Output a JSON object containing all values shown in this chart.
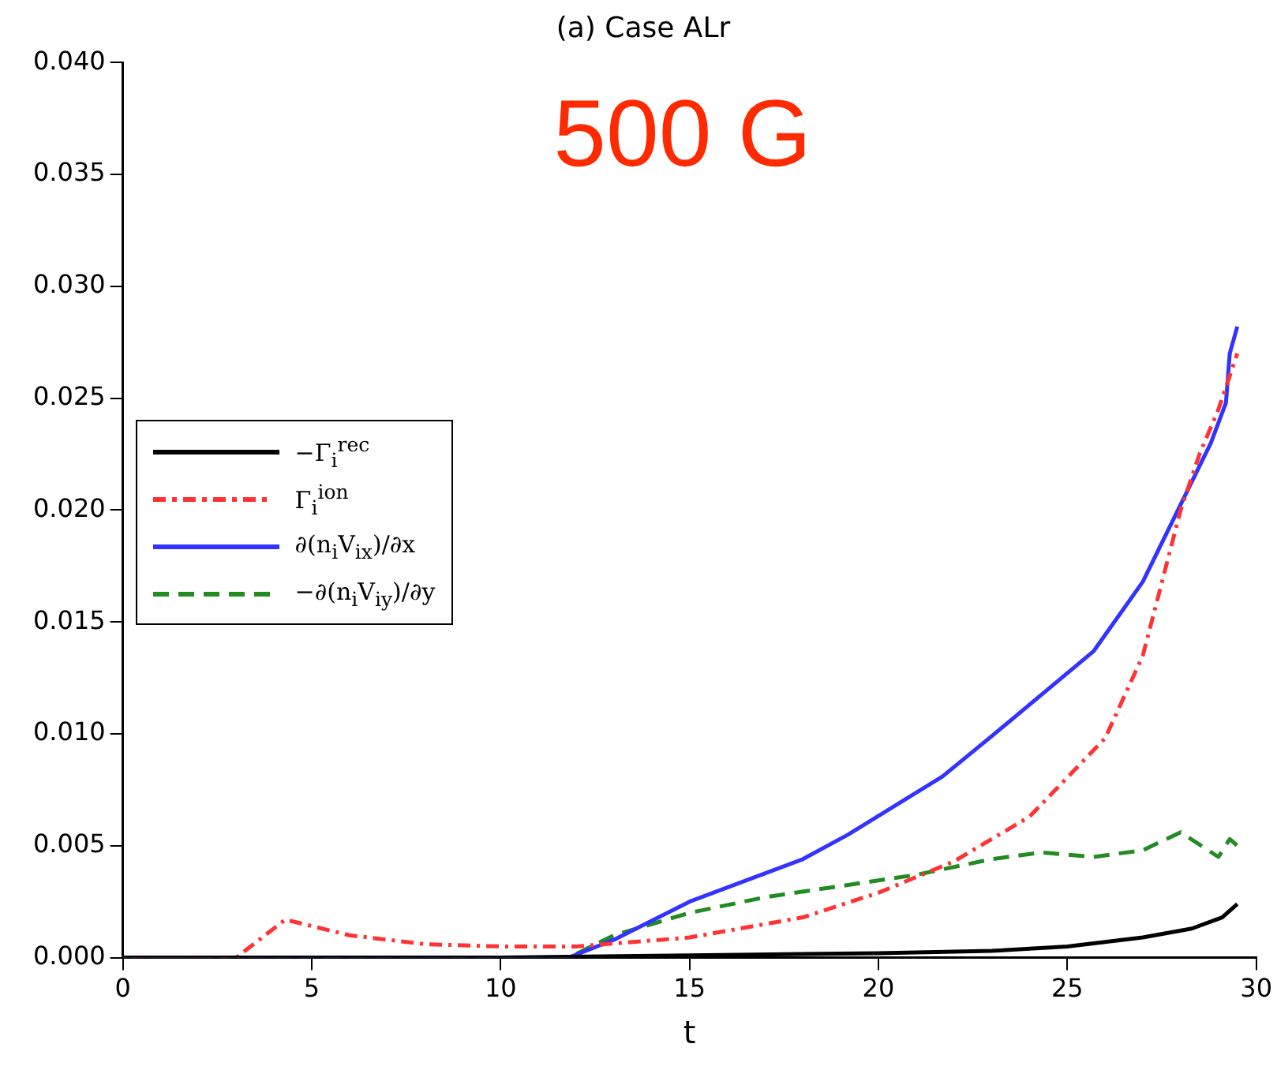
{
  "chart_data": {
    "type": "line",
    "title": "(a) Case ALr",
    "xlabel": "t",
    "annotations": [
      "500 G"
    ],
    "xlim": [
      0,
      30
    ],
    "xticks": [
      0,
      5,
      10,
      15,
      20,
      25,
      30
    ],
    "ylim": [
      0,
      0.04
    ],
    "yticks": [
      {
        "value": 0,
        "label": "0.000"
      },
      {
        "value": 0.005,
        "label": "0.005"
      },
      {
        "value": 0.01,
        "label": "0.010"
      },
      {
        "value": 0.015,
        "label": "0.015"
      },
      {
        "value": 0.02,
        "label": "0.020"
      },
      {
        "value": 0.025,
        "label": "0.025"
      },
      {
        "value": 0.03,
        "label": "0.030"
      },
      {
        "value": 0.035,
        "label": "0.035"
      },
      {
        "value": 0.04,
        "label": "0.040"
      }
    ],
    "grid": false,
    "legend": "left",
    "marker": "none",
    "series": [
      {
        "name": "−Γ$_{i}$$^{rec}$",
        "color": "#000000",
        "line_style": "solid",
        "x": [
          0,
          10,
          15,
          20,
          23,
          25,
          27,
          28.3,
          29.1,
          29.5
        ],
        "values": [
          0,
          0,
          0.0001,
          0.0002,
          0.0003,
          0.0005,
          0.0009,
          0.0013,
          0.0018,
          0.0024
        ]
      },
      {
        "name": "Γ$_{i}$$^{ion}$",
        "color": "#ff3333",
        "line_style": "dotted",
        "x": [
          0,
          3,
          4.3,
          6,
          8,
          10,
          12,
          15,
          18,
          20,
          22,
          24,
          26,
          27,
          28,
          28.5,
          29,
          29.5
        ],
        "values": [
          0,
          0,
          0.0017,
          0.001,
          0.0006,
          0.0005,
          0.0005,
          0.0009,
          0.0018,
          0.0029,
          0.0043,
          0.0063,
          0.0098,
          0.0135,
          0.02,
          0.0225,
          0.0245,
          0.027
        ]
      },
      {
        "name": "∂(n$_{i}$V$_{ix}$)/∂x",
        "color": "#3333ff",
        "line_style": "solid",
        "x": [
          0,
          11.8,
          13,
          15,
          18,
          19.2,
          21.7,
          23,
          25.7,
          27,
          28.8,
          29.2,
          29.3,
          29.5
        ],
        "values": [
          0,
          0,
          0.0008,
          0.0025,
          0.0044,
          0.0055,
          0.0081,
          0.0099,
          0.0137,
          0.0168,
          0.023,
          0.0248,
          0.027,
          0.0282
        ]
      },
      {
        "name": "−∂(n$_{i}$V$_{iy}$)/∂y",
        "color": "#228b22",
        "line_style": "dashed",
        "x": [
          0,
          11.8,
          13,
          15,
          17,
          19,
          21,
          23,
          24.3,
          25.7,
          27,
          28,
          29,
          29.3,
          29.5
        ],
        "values": [
          0,
          0,
          0.001,
          0.002,
          0.0027,
          0.0032,
          0.0037,
          0.0044,
          0.0047,
          0.0045,
          0.0048,
          0.0056,
          0.0045,
          0.0053,
          0.005
        ]
      }
    ]
  }
}
